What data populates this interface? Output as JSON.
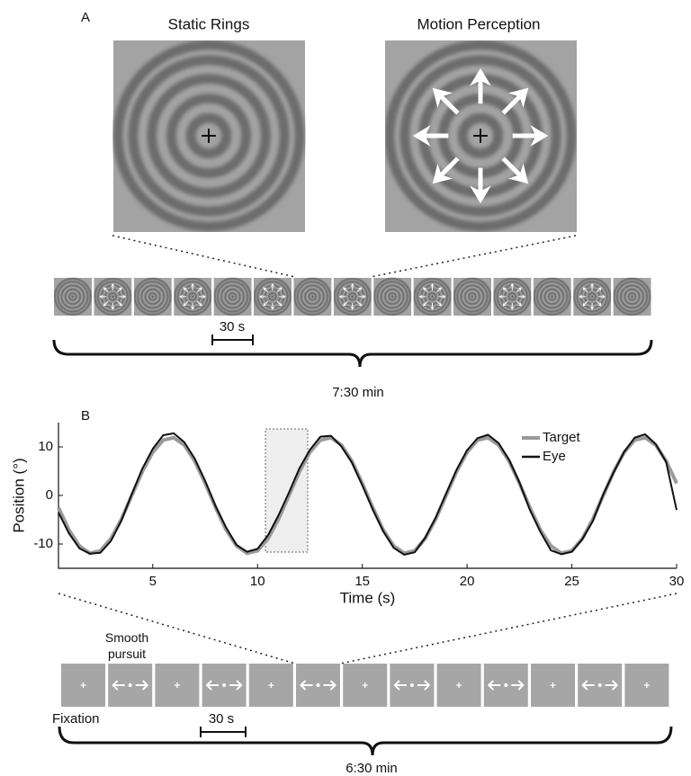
{
  "panel_a": {
    "label": "A",
    "titles": [
      "Static Rings",
      "Motion Perception"
    ],
    "scale_bar": "30 s",
    "duration": "7:30 min"
  },
  "chart_data": {
    "type": "line",
    "panel_label": "B",
    "xlabel": "Time (s)",
    "ylabel": "Position (°)",
    "xlim": [
      0.5,
      30
    ],
    "ylim": [
      -15,
      15
    ],
    "xticks": [
      5,
      10,
      15,
      20,
      25,
      30
    ],
    "yticks": [
      -10,
      0,
      10
    ],
    "legend": "top-right",
    "x": [
      0.5,
      1,
      1.5,
      2,
      2.5,
      3,
      3.5,
      4,
      4.5,
      5,
      5.5,
      6,
      6.5,
      7,
      7.5,
      8,
      8.5,
      9,
      9.5,
      10,
      10.5,
      11,
      11.5,
      12,
      12.5,
      13,
      13.5,
      14,
      14.5,
      15,
      15.5,
      16,
      16.5,
      17,
      17.5,
      18,
      18.5,
      19,
      19.5,
      20,
      20.5,
      21,
      21.5,
      22,
      22.5,
      23,
      23.5,
      24,
      24.5,
      25,
      25.5,
      26,
      26.5,
      27,
      27.5,
      28,
      28.5,
      29,
      29.5,
      30
    ],
    "series": [
      {
        "name": "Target",
        "color": "#9a9a9a",
        "values": [
          -2.5,
          -7.1,
          -10.4,
          -11.9,
          -11.4,
          -8.9,
          -4.9,
          0,
          4.9,
          8.9,
          11.4,
          11.9,
          10.4,
          7.1,
          2.5,
          -2.5,
          -7.1,
          -10.4,
          -11.9,
          -11.4,
          -8.9,
          -4.9,
          0,
          4.9,
          8.9,
          11.4,
          11.9,
          10.4,
          7.1,
          2.5,
          -2.5,
          -7.1,
          -10.4,
          -11.9,
          -11.4,
          -8.9,
          -4.9,
          0,
          4.9,
          8.9,
          11.4,
          11.9,
          10.4,
          7.1,
          2.5,
          -2.5,
          -7.1,
          -10.4,
          -11.9,
          -11.4,
          -8.9,
          -4.9,
          0,
          4.9,
          8.9,
          11.4,
          11.9,
          10.4,
          7.1,
          2.5
        ]
      },
      {
        "name": "Eye",
        "color": "#111111",
        "values": [
          -3.5,
          -7.8,
          -10.9,
          -12.0,
          -11.8,
          -9.4,
          -5.2,
          0.3,
          5.5,
          9.6,
          12.4,
          12.8,
          11.0,
          7.6,
          3.0,
          -2.2,
          -6.6,
          -10.2,
          -11.6,
          -11.0,
          -8.2,
          -4.1,
          0.6,
          5.6,
          9.4,
          12.1,
          12.3,
          10.1,
          6.8,
          2.1,
          -2.9,
          -7.4,
          -10.8,
          -12.2,
          -11.7,
          -8.7,
          -4.6,
          0.4,
          5.3,
          9.3,
          11.8,
          12.5,
          10.8,
          7.4,
          2.7,
          -3.0,
          -7.5,
          -11.3,
          -12.1,
          -11.6,
          -9.0,
          -5.3,
          0.2,
          4.8,
          9.0,
          11.9,
          12.6,
          10.6,
          6.9,
          -3.0
        ]
      }
    ]
  },
  "panel_b": {
    "smooth_pursuit": "Smooth pursuit",
    "fixation": "Fixation",
    "scale_bar": "30 s",
    "duration": "6:30 min"
  }
}
